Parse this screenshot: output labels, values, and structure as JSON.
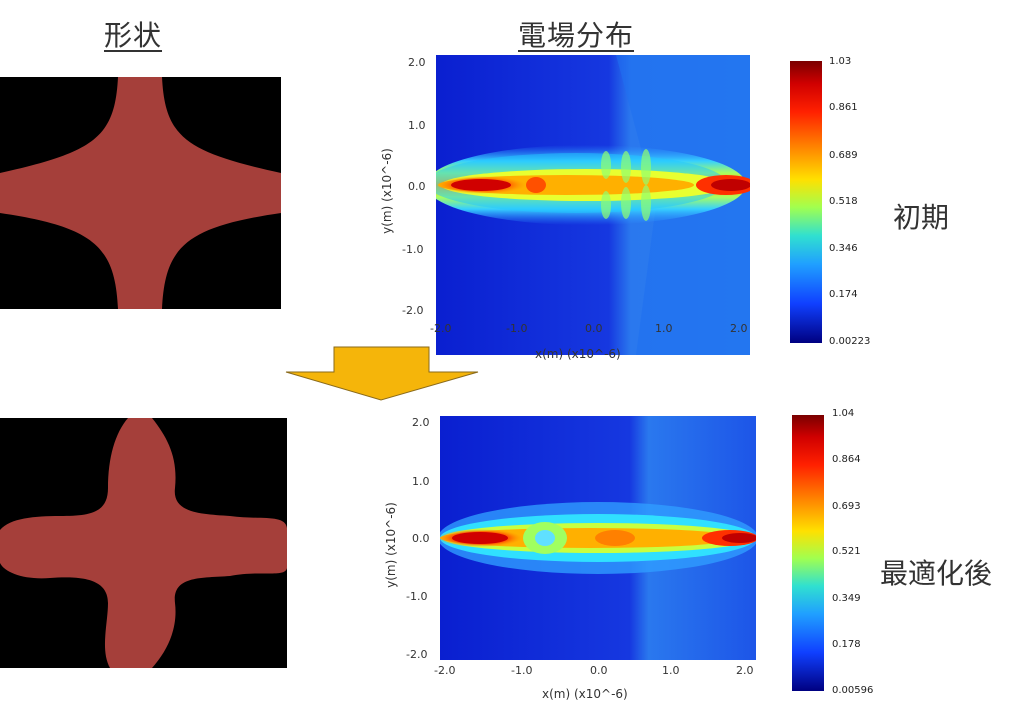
{
  "headers": {
    "shape": "形状",
    "field": "電場分布"
  },
  "rows": [
    {
      "label": "初期",
      "x_ticks": [
        "-2.0",
        "-1.0",
        "0.0",
        "1.0",
        "2.0"
      ],
      "y_ticks": [
        "2.0",
        "1.0",
        "0.0",
        "-1.0",
        "-2.0"
      ],
      "xlabel": "x(m) (x10^-6)",
      "ylabel": "y(m) (x10^-6)",
      "colorbar_ticks": [
        "1.03",
        "0.861",
        "0.689",
        "0.518",
        "0.346",
        "0.174",
        "0.00223"
      ]
    },
    {
      "label": "最適化後",
      "x_ticks": [
        "-2.0",
        "-1.0",
        "0.0",
        "1.0",
        "2.0"
      ],
      "y_ticks": [
        "2.0",
        "1.0",
        "0.0",
        "-1.0",
        "-2.0"
      ],
      "xlabel": "x(m) (x10^-6)",
      "ylabel": "y(m) (x10^-6)",
      "colorbar_ticks": [
        "1.04",
        "0.864",
        "0.693",
        "0.521",
        "0.349",
        "0.178",
        "0.00596"
      ]
    }
  ],
  "colors": {
    "shape_fill": "#a53f3a",
    "shape_bg": "#000000",
    "arrow": "#f5b50a",
    "arrow_stroke": "#8a6a1a"
  }
}
